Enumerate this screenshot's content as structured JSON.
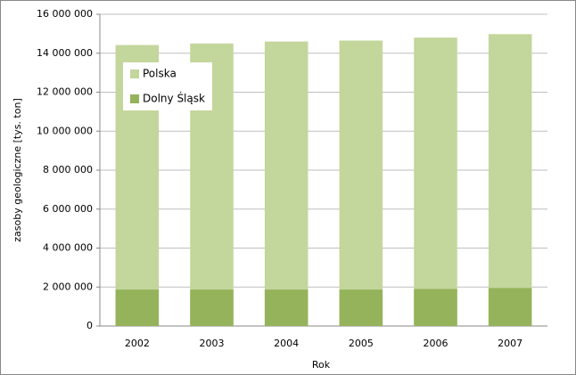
{
  "chart_data": {
    "type": "bar",
    "overlap": true,
    "x_label": "Rok",
    "y_label": "zasoby geologiczne [tys. ton]",
    "categories": [
      "2002",
      "2003",
      "2004",
      "2005",
      "2006",
      "2007"
    ],
    "series": [
      {
        "name": "Polska",
        "color": "#c3d69b",
        "values": [
          14420000,
          14500000,
          14600000,
          14650000,
          14800000,
          14980000
        ]
      },
      {
        "name": "Dolny Śląsk",
        "color": "#95b35a",
        "values": [
          1870000,
          1870000,
          1870000,
          1870000,
          1900000,
          1950000
        ]
      }
    ],
    "ylim": [
      0,
      16000000
    ],
    "yticks": [
      0,
      {
        "value": 2000000,
        "label": "2 000 000"
      },
      {
        "value": 4000000,
        "label": "4 000 000"
      },
      {
        "value": 6000000,
        "label": "6 000 000"
      },
      {
        "value": 8000000,
        "label": "8 000 000"
      },
      {
        "value": 10000000,
        "label": "10 000 000"
      },
      {
        "value": 12000000,
        "label": "12 000 000"
      },
      {
        "value": 14000000,
        "label": "14 000 000"
      },
      {
        "value": 16000000,
        "label": "16 000 000"
      }
    ],
    "grid": true,
    "legend": "upper left"
  }
}
